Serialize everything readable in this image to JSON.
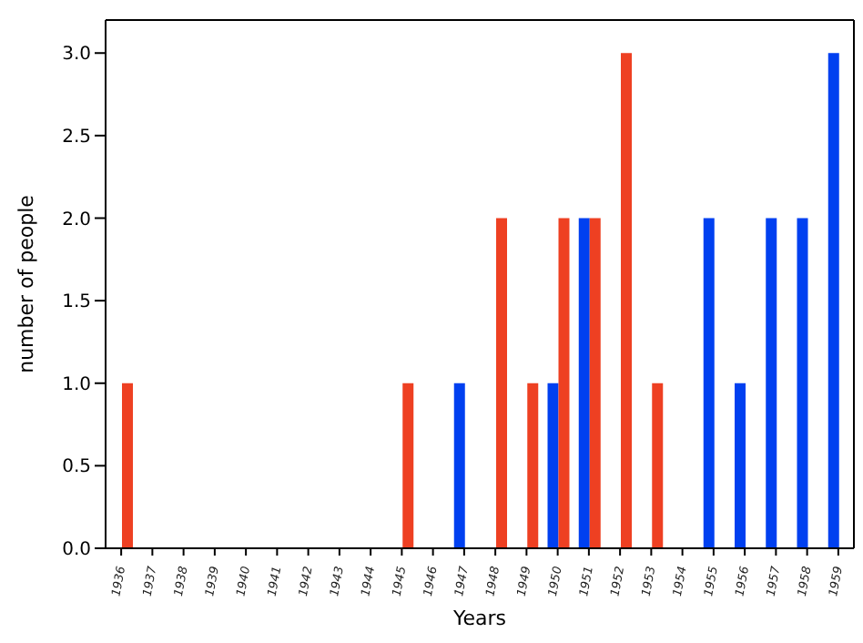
{
  "chart_data": {
    "type": "bar",
    "xlabel": "Years",
    "ylabel": "number of people",
    "categories": [
      "1936",
      "1937",
      "1938",
      "1939",
      "1940",
      "1941",
      "1942",
      "1943",
      "1944",
      "1945",
      "1946",
      "1947",
      "1948",
      "1949",
      "1950",
      "1951",
      "1952",
      "1953",
      "1954",
      "1955",
      "1956",
      "1957",
      "1958",
      "1959"
    ],
    "series": [
      {
        "color": "#0040f0",
        "values": [
          0,
          0,
          0,
          0,
          0,
          0,
          0,
          0,
          0,
          0,
          0,
          1,
          0,
          0,
          1,
          2,
          0,
          0,
          0,
          2,
          1,
          2,
          2,
          3
        ]
      },
      {
        "color": "#ee4022",
        "values": [
          1,
          0,
          0,
          0,
          0,
          0,
          0,
          0,
          0,
          1,
          0,
          0,
          2,
          1,
          2,
          2,
          3,
          1,
          0,
          0,
          0,
          0,
          0,
          0
        ]
      }
    ],
    "ylim": [
      0,
      3.2
    ],
    "yticks": [
      {
        "value": 0,
        "label": "0.0"
      },
      {
        "value": 0.5,
        "label": "0.5"
      },
      {
        "value": 1,
        "label": "1.0"
      },
      {
        "value": 1.5,
        "label": "1.5"
      },
      {
        "value": 2,
        "label": "2.0"
      },
      {
        "value": 2.5,
        "label": "2.5"
      },
      {
        "value": 3,
        "label": "3.0"
      }
    ],
    "grid": false,
    "legend": false
  }
}
